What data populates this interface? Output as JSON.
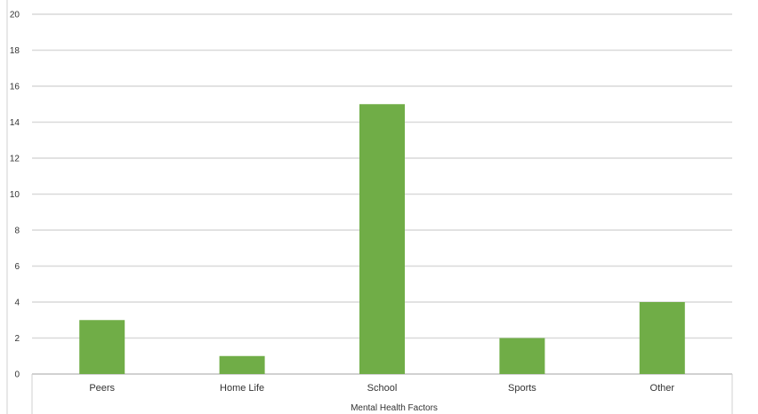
{
  "chart_data": {
    "type": "bar",
    "title": "",
    "xlabel": "Mental Health Factors",
    "ylabel": "",
    "categories": [
      "Peers",
      "Home Life",
      "School",
      "Sports",
      "Other"
    ],
    "values": [
      3,
      1,
      15,
      2,
      4
    ],
    "ylim": [
      0,
      20
    ],
    "yticks": [
      0,
      2,
      4,
      6,
      8,
      10,
      12,
      14,
      16,
      18,
      20
    ],
    "grid": true,
    "legend": "none",
    "bar_color": "#70ad47",
    "grid_color": "#d9d9d9"
  }
}
